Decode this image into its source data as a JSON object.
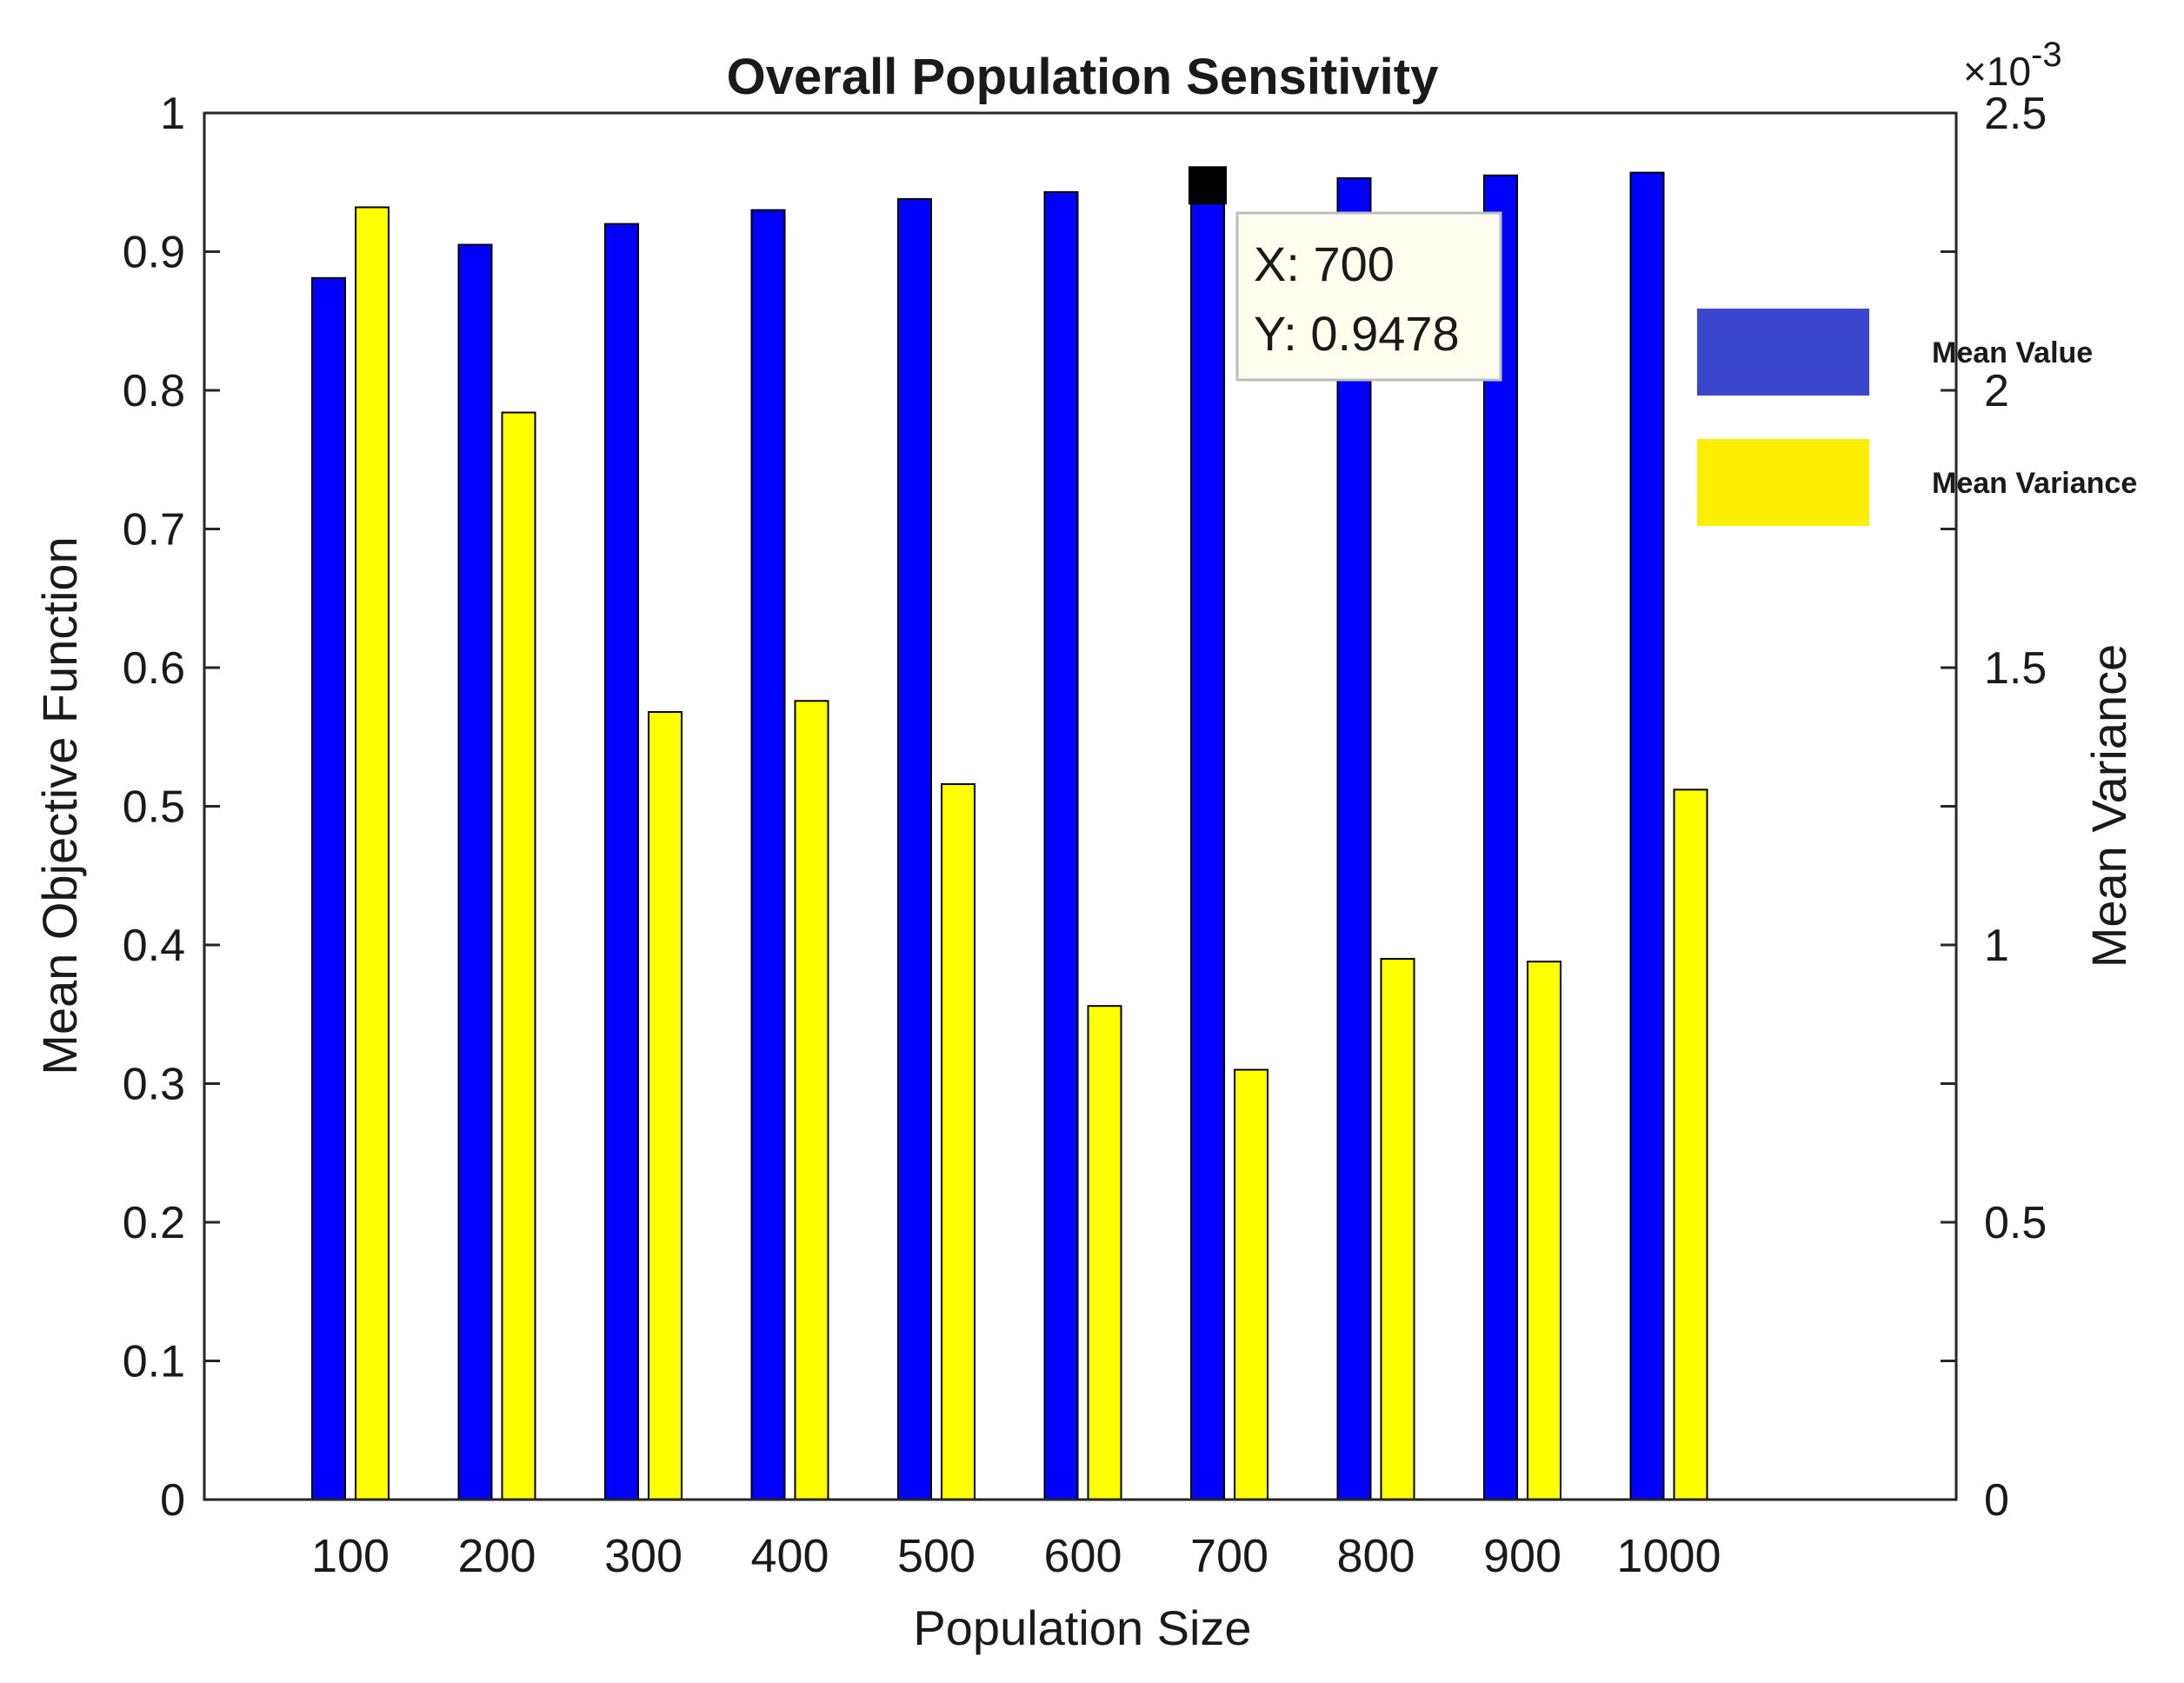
{
  "chart_data": {
    "type": "bar",
    "title": "Overall Population Sensitivity",
    "xlabel": "Population Size",
    "ylabel_left": "Mean Objective Function",
    "ylabel_right": "Mean Variance",
    "categories": [
      "100",
      "200",
      "300",
      "400",
      "500",
      "600",
      "700",
      "800",
      "900",
      "1000"
    ],
    "ylim_left": [
      0,
      1
    ],
    "yticks_left": [
      "0",
      "0.1",
      "0.2",
      "0.3",
      "0.4",
      "0.5",
      "0.6",
      "0.7",
      "0.8",
      "0.9",
      "1"
    ],
    "ylim_right": [
      0,
      0.0025
    ],
    "yticks_right": [
      "0",
      "0.5",
      "1",
      "1.5",
      "2",
      "2.5"
    ],
    "right_axis_multiplier": "×10",
    "right_axis_multiplier_exp": "-3",
    "grid": false,
    "series": [
      {
        "name": "Mean Value",
        "axis": "left",
        "color": "#0000ff",
        "values": [
          0.881,
          0.905,
          0.92,
          0.93,
          0.938,
          0.943,
          0.9478,
          0.953,
          0.955,
          0.957
        ]
      },
      {
        "name": "Mean Variance",
        "axis": "right",
        "color": "#ffff00",
        "values": [
          0.00233,
          0.00196,
          0.00142,
          0.00144,
          0.00129,
          0.00089,
          0.000775,
          0.000975,
          0.00097,
          0.00128
        ]
      }
    ],
    "legend": {
      "position": "right",
      "items": [
        {
          "label": "Mean Value",
          "color": "#3a46cc"
        },
        {
          "label": "Mean Variance",
          "color": "#ffee00"
        }
      ]
    },
    "datatip": {
      "category_index": 6,
      "x_text": "X: 700",
      "y_text": "Y: 0.9478"
    }
  }
}
